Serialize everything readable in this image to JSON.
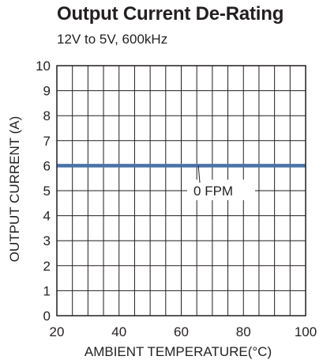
{
  "chart_data": {
    "type": "line",
    "title": "Output Current De-Rating",
    "subtitle": "12V to 5V, 600kHz",
    "xlabel": "AMBIENT TEMPERATURE(°C)",
    "ylabel": "OUTPUT CURRENT (A)",
    "xlim": [
      20,
      100
    ],
    "ylim": [
      0,
      10
    ],
    "x_ticks": [
      20,
      40,
      60,
      80,
      100
    ],
    "y_ticks": [
      0,
      1,
      2,
      3,
      4,
      5,
      6,
      7,
      8,
      9,
      10
    ],
    "x_minor_step": 5,
    "grid": true,
    "series": [
      {
        "name": "0 FPM",
        "color": "#4a72a8",
        "x": [
          20,
          100
        ],
        "y": [
          6,
          6
        ]
      }
    ],
    "annotations": [
      {
        "text": "0 FPM",
        "x": 67.5,
        "y": 5.0,
        "arrow_to": {
          "x": 65.5,
          "y": 6.0
        }
      }
    ]
  }
}
